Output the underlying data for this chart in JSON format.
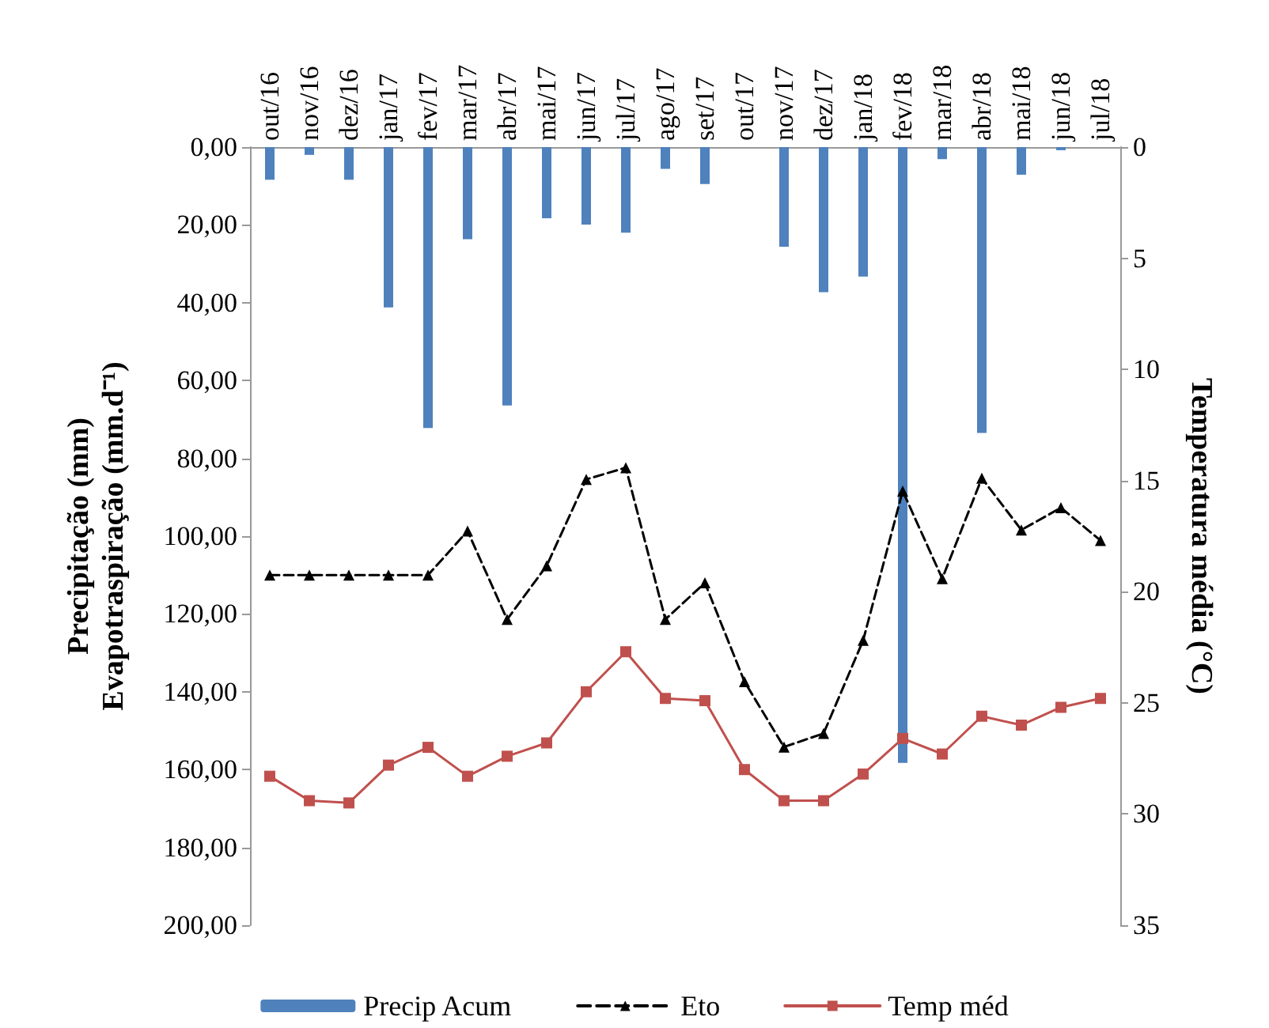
{
  "chart_data": {
    "type": "bar",
    "categories": [
      "out/16",
      "nov/16",
      "dez/16",
      "jan/17",
      "fev/17",
      "mar/17",
      "abr/17",
      "mai/17",
      "jun/17",
      "jul/17",
      "ago/17",
      "set/17",
      "out/17",
      "nov/17",
      "dez/17",
      "jan/18",
      "fev/18",
      "mar/18",
      "abr/18",
      "mai/18",
      "jun/18",
      "jul/18"
    ],
    "ylabel": "Precipitação (mm)\nEvapotraspiração (mm.d⁻¹)",
    "y2label": "Temperatura média (°C)",
    "ylim": [
      200,
      0
    ],
    "yticks": [
      {
        "value": 0,
        "label": "0,00"
      },
      {
        "value": 20,
        "label": "20,00"
      },
      {
        "value": 40,
        "label": "40,00"
      },
      {
        "value": 60,
        "label": "60,00"
      },
      {
        "value": 80,
        "label": "80,00"
      },
      {
        "value": 100,
        "label": "100,00"
      },
      {
        "value": 120,
        "label": "120,00"
      },
      {
        "value": 140,
        "label": "140,00"
      },
      {
        "value": 160,
        "label": "160,00"
      },
      {
        "value": 180,
        "label": "180,00"
      },
      {
        "value": 200,
        "label": "200,00"
      }
    ],
    "y2lim": [
      35,
      0
    ],
    "y2ticks": [
      0,
      5,
      10,
      15,
      20,
      25,
      30,
      35
    ],
    "grid": false,
    "legend": "bottom",
    "series": [
      {
        "name": "Precip Acum",
        "color": "#4f81bd",
        "values": [
          8.4,
          2,
          8.4,
          41.2,
          72.2,
          23.7,
          66.4,
          18.3,
          19.9,
          22,
          5.6,
          9.5,
          0,
          25.6,
          37.3,
          33.3,
          158.3,
          3.1,
          73.5,
          7.1,
          0.8,
          0
        ]
      },
      {
        "name": "Eto",
        "type": "line",
        "color": "#000000",
        "marker": "triangle",
        "line_style": "dashed",
        "values": [
          110,
          110,
          110,
          110,
          110,
          98.7,
          121.4,
          107.6,
          85.4,
          82.4,
          121.4,
          112,
          137.4,
          154.2,
          150.7,
          126.8,
          88.4,
          110.9,
          85.1,
          98.4,
          92.7,
          101.1
        ]
      },
      {
        "name": "Temp méd",
        "type": "line",
        "axis": "y2",
        "color": "#c0504d",
        "marker": "square",
        "line_style": "solid",
        "values": [
          28.3,
          29.4,
          29.5,
          27.8,
          27,
          28.3,
          27.4,
          26.8,
          24.5,
          22.7,
          24.8,
          24.9,
          28,
          29.4,
          29.4,
          28.2,
          26.6,
          27.3,
          25.6,
          26,
          25.2,
          24.8
        ]
      }
    ]
  }
}
